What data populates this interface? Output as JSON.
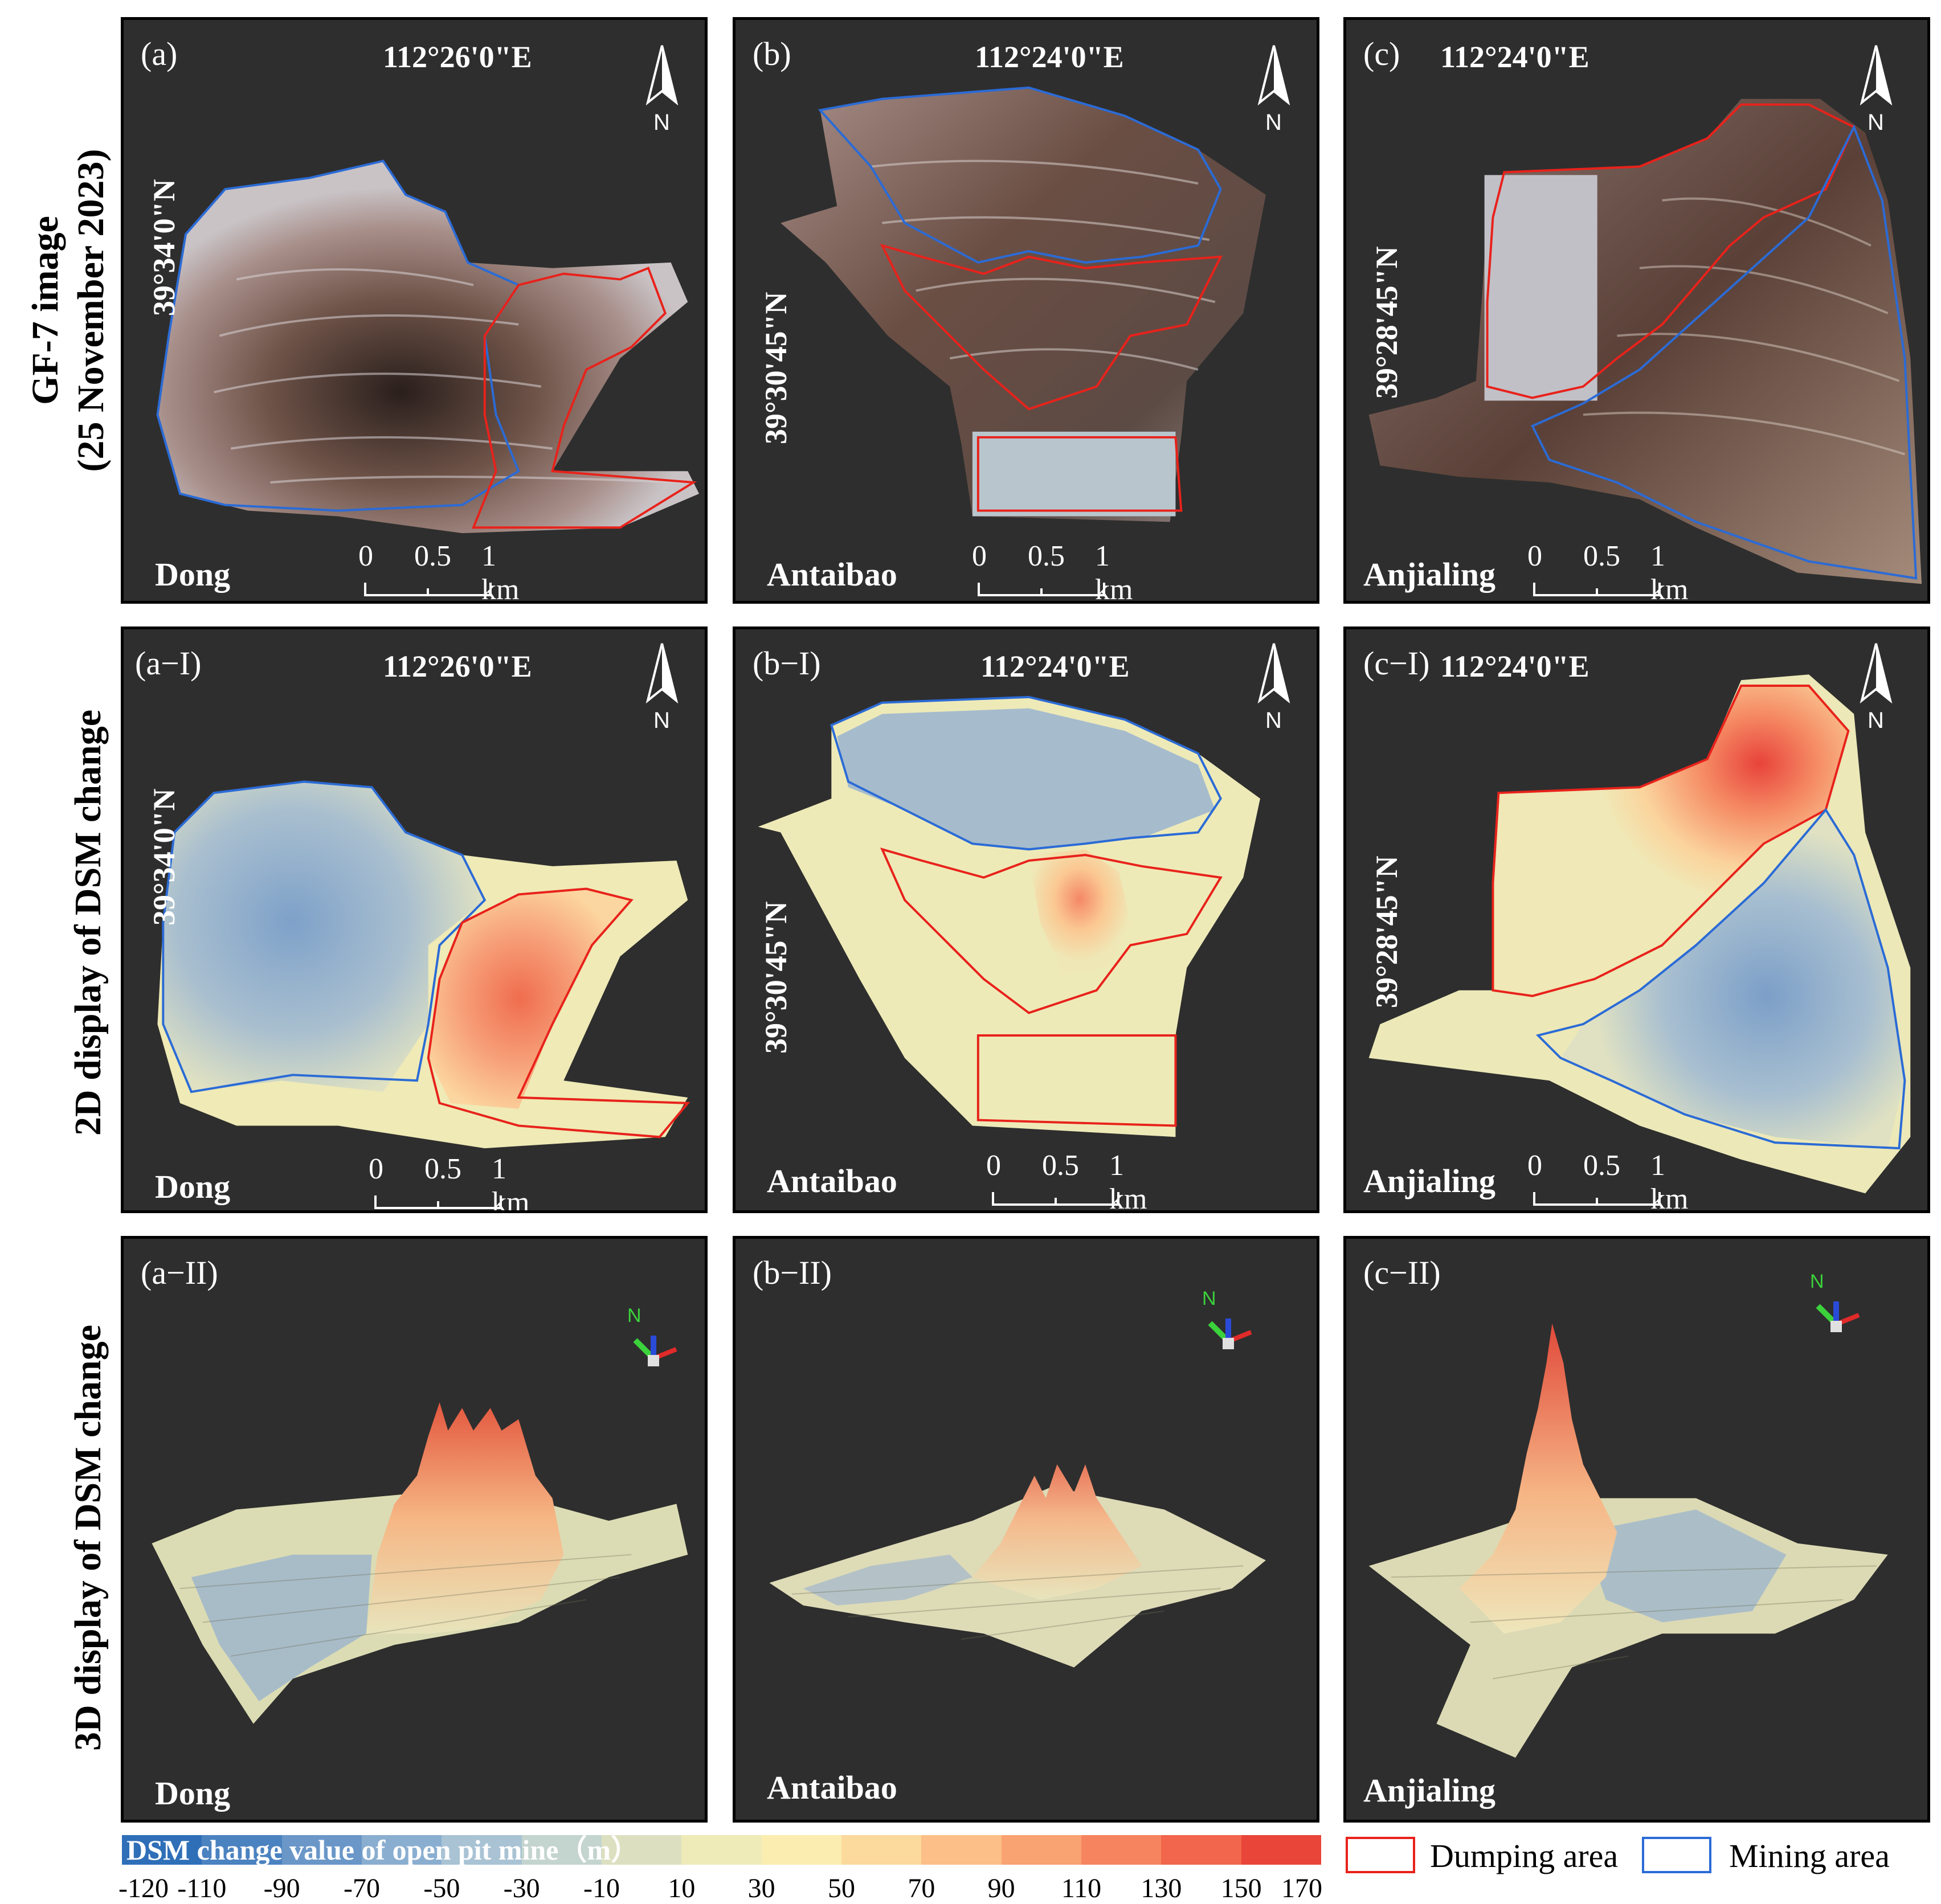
{
  "row_labels": [
    {
      "line1": "GF-7 image",
      "line2": "(25 November 2023)"
    },
    {
      "line1": "2D display of DSM change",
      "line2": ""
    },
    {
      "line1": "3D display of DSM change",
      "line2": ""
    }
  ],
  "panels": [
    {
      "label": "(a)",
      "mine": "Dong",
      "lon": "112°26'0\"E",
      "lat": "39°34'0\"N"
    },
    {
      "label": "(b)",
      "mine": "Antaibao",
      "lon": "112°24'0\"E",
      "lat": "39°30'45\"N"
    },
    {
      "label": "(c)",
      "mine": "Anjialing",
      "lon": "112°24'0\"E",
      "lat": "39°28'45\"N"
    },
    {
      "label": "(a−I)",
      "mine": "Dong",
      "lon": "112°26'0\"E",
      "lat": "39°34'0\"N"
    },
    {
      "label": "(b−I)",
      "mine": "Antaibao",
      "lon": "112°24'0\"E",
      "lat": "39°30'45\"N"
    },
    {
      "label": "(c−I)",
      "mine": "Anjialing",
      "lon": "112°24'0\"E",
      "lat": "39°28'45\"N"
    },
    {
      "label": "(a−II)",
      "mine": "Dong"
    },
    {
      "label": "(b−II)",
      "mine": "Antaibao"
    },
    {
      "label": "(c−II)",
      "mine": "Anjialing"
    }
  ],
  "scale_bar": {
    "ticks": [
      "0",
      "0.5",
      "1 km"
    ]
  },
  "north_label": "N",
  "axis_gizmo_label": "N",
  "legend": {
    "title": "DSM change value of open pit mine（m）",
    "ticks": [
      "-120",
      "-110",
      "-90",
      "-70",
      "-50",
      "-30",
      "-10",
      "10",
      "30",
      "50",
      "70",
      "90",
      "110",
      "130",
      "150",
      "170"
    ],
    "colors": [
      "#2f6fb8",
      "#4b82c0",
      "#6a97c8",
      "#8aaed0",
      "#a9c3d4",
      "#c4d4cf",
      "#dde0c0",
      "#eeebb8",
      "#fbedb0",
      "#fcd99c",
      "#fbbf87",
      "#f9a272",
      "#f6855f",
      "#f1664c",
      "#ea4539"
    ],
    "dumping": "Dumping area",
    "mining": "Mining area",
    "dumping_color": "#e8221b",
    "mining_color": "#2b6bd6"
  }
}
